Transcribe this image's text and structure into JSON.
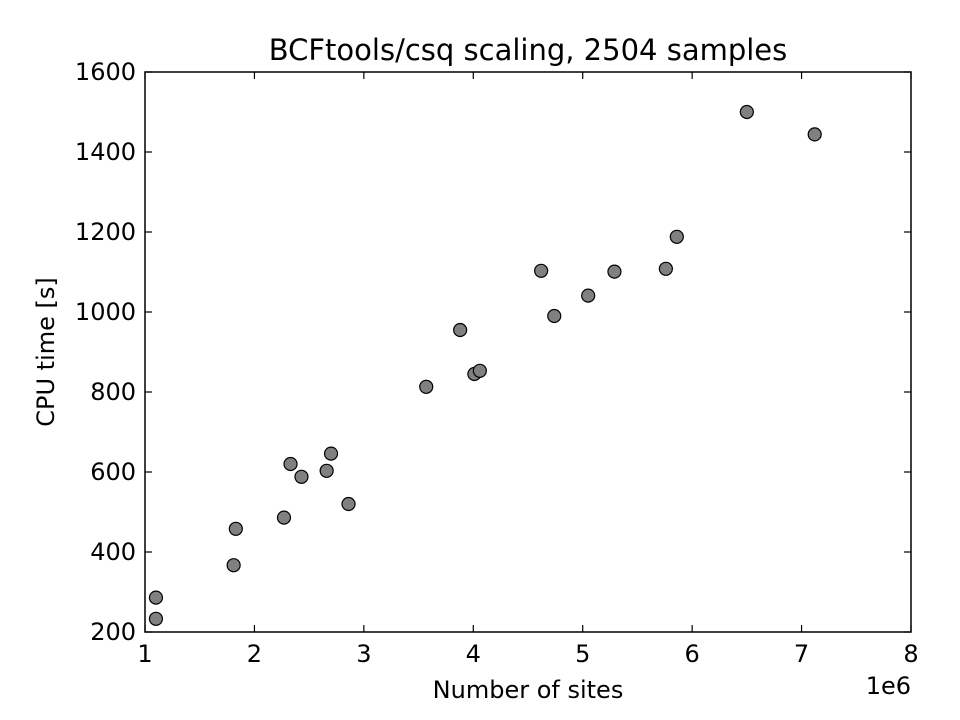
{
  "chart_data": {
    "type": "scatter",
    "title": "BCFtools/csq scaling, 2504 samples",
    "xlabel": "Number of sites",
    "ylabel": "CPU time [s]",
    "x_offset_label": "1e6",
    "xlim": [
      1,
      8
    ],
    "ylim": [
      200,
      1600
    ],
    "xticks": [
      1,
      2,
      3,
      4,
      5,
      6,
      7,
      8
    ],
    "yticks": [
      200,
      400,
      600,
      800,
      1000,
      1200,
      1400,
      1600
    ],
    "grid": false,
    "legend": "none",
    "marker_color": "#808080",
    "marker_edge_color": "#000000",
    "points": [
      {
        "x": 1.1,
        "y": 286
      },
      {
        "x": 1.1,
        "y": 233
      },
      {
        "x": 1.81,
        "y": 367
      },
      {
        "x": 1.83,
        "y": 458
      },
      {
        "x": 2.27,
        "y": 486
      },
      {
        "x": 2.33,
        "y": 620
      },
      {
        "x": 2.43,
        "y": 588
      },
      {
        "x": 2.66,
        "y": 603
      },
      {
        "x": 2.7,
        "y": 646
      },
      {
        "x": 2.86,
        "y": 520
      },
      {
        "x": 3.57,
        "y": 813
      },
      {
        "x": 3.88,
        "y": 955
      },
      {
        "x": 4.01,
        "y": 845
      },
      {
        "x": 4.06,
        "y": 853
      },
      {
        "x": 4.62,
        "y": 1103
      },
      {
        "x": 4.74,
        "y": 990
      },
      {
        "x": 5.05,
        "y": 1041
      },
      {
        "x": 5.29,
        "y": 1101
      },
      {
        "x": 5.76,
        "y": 1108
      },
      {
        "x": 5.86,
        "y": 1188
      },
      {
        "x": 6.5,
        "y": 1500
      },
      {
        "x": 7.12,
        "y": 1444
      }
    ]
  }
}
